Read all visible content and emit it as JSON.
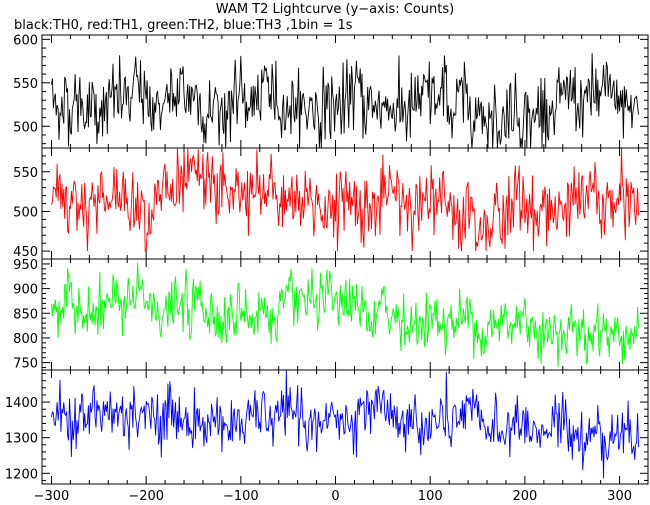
{
  "chart_data": {
    "type": "line",
    "title": "WAM T2 Lightcurve (y−axis: Counts)",
    "subtitle": "black:TH0, red:TH1, green:TH2, blue:TH3 ,1bin = 1s",
    "xlim": [
      -310,
      330
    ],
    "x_ticks": [
      -300,
      -200,
      -100,
      0,
      100,
      200,
      300
    ],
    "x_tick_labels": [
      "−300",
      "−200",
      "−100",
      "0",
      "100",
      "200",
      "300"
    ],
    "x_start": -300,
    "x_end": 320,
    "bin_seconds": 1,
    "panels": [
      {
        "series_name": "TH0",
        "color": "#000000",
        "ylim": [
          475,
          605
        ],
        "y_ticks": [
          500,
          550,
          600
        ],
        "mean_start": 530,
        "mean_end": 522,
        "noise": 20,
        "min": 475,
        "max": 605
      },
      {
        "series_name": "TH1",
        "color": "#ff0000",
        "ylim": [
          440,
          580
        ],
        "y_ticks": [
          450,
          500,
          550
        ],
        "mean_start": 520,
        "mean_end": 505,
        "noise": 22,
        "min": 450,
        "max": 580
      },
      {
        "series_name": "TH2",
        "color": "#00ff00",
        "ylim": [
          735,
          960
        ],
        "y_ticks": [
          750,
          800,
          850,
          900,
          950
        ],
        "mean_start": 870,
        "mean_end": 820,
        "noise": 28,
        "min": 740,
        "max": 960
      },
      {
        "series_name": "TH3",
        "color": "#0000ff",
        "ylim": [
          1170,
          1490
        ],
        "y_ticks": [
          1200,
          1300,
          1400
        ],
        "mean_start": 1360,
        "mean_end": 1320,
        "noise": 38,
        "min": 1175,
        "max": 1490
      }
    ]
  }
}
